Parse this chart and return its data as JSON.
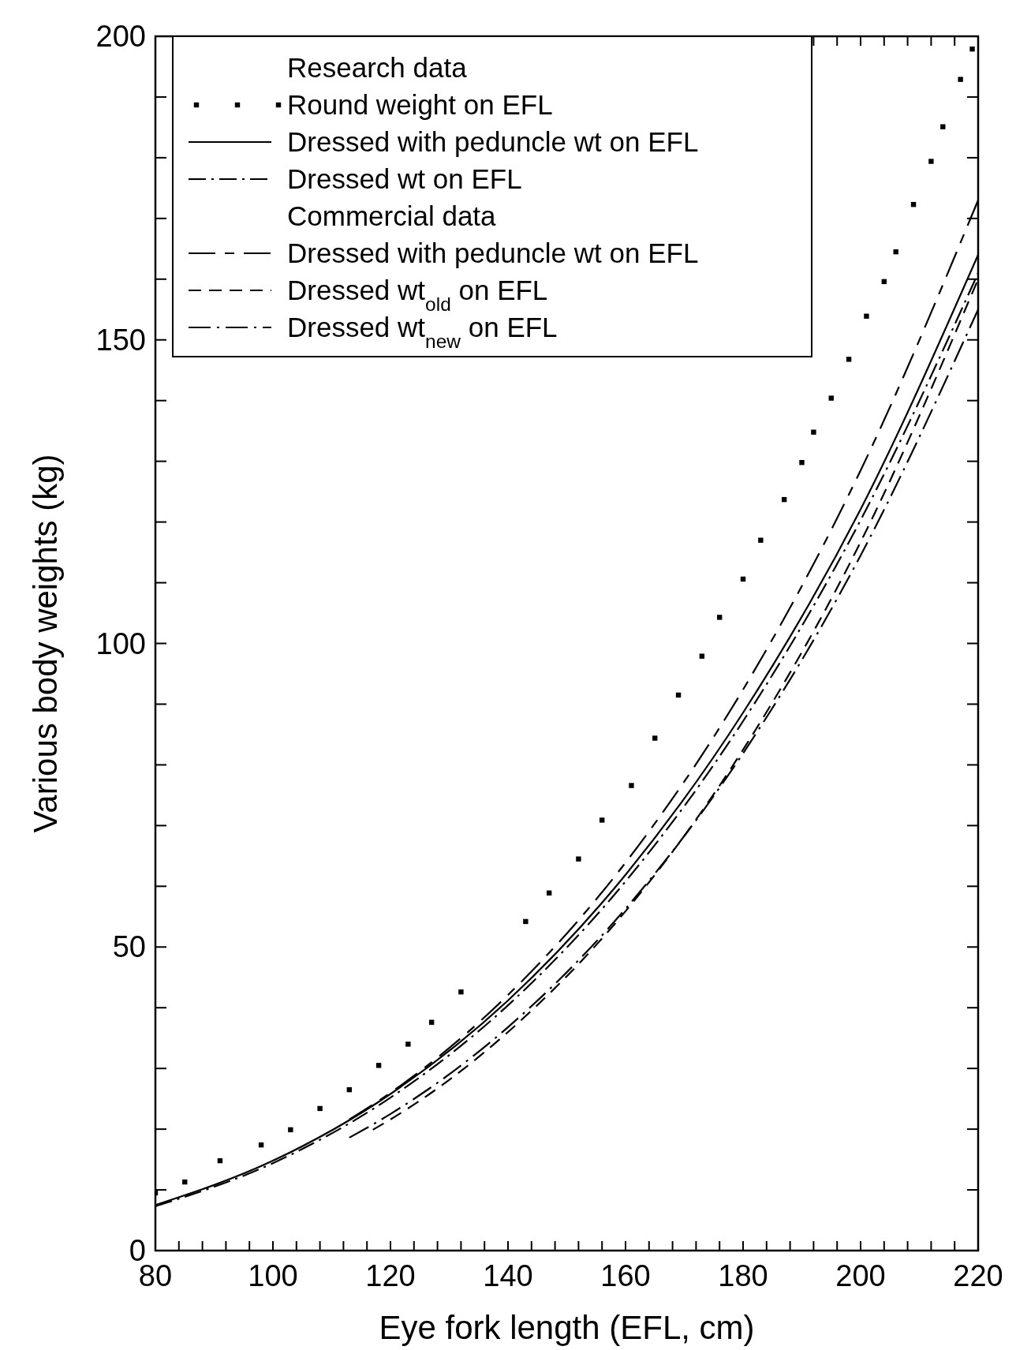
{
  "chart_data": {
    "type": "line",
    "xlabel": "Eye fork length (EFL, cm)",
    "ylabel": "Various body weights (kg)",
    "xlim": [
      80,
      220
    ],
    "ylim": [
      0,
      200
    ],
    "xticks": [
      80,
      {
        "value": 84,
        "label": null
      },
      {
        "value": 88,
        "label": null
      },
      {
        "value": 92,
        "label": null
      },
      {
        "value": 96,
        "label": null
      },
      100,
      {
        "value": 104,
        "label": null
      },
      {
        "value": 108,
        "label": null
      },
      {
        "value": 112,
        "label": null
      },
      {
        "value": 116,
        "label": null
      },
      120,
      {
        "value": 124,
        "label": null
      },
      {
        "value": 128,
        "label": null
      },
      {
        "value": 132,
        "label": null
      },
      {
        "value": 136,
        "label": null
      },
      140,
      {
        "value": 144,
        "label": null
      },
      {
        "value": 148,
        "label": null
      },
      {
        "value": 152,
        "label": null
      },
      {
        "value": 156,
        "label": null
      },
      160,
      {
        "value": 164,
        "label": null
      },
      {
        "value": 168,
        "label": null
      },
      {
        "value": 172,
        "label": null
      },
      {
        "value": 176,
        "label": null
      },
      180,
      {
        "value": 184,
        "label": null
      },
      {
        "value": 188,
        "label": null
      },
      {
        "value": 192,
        "label": null
      },
      {
        "value": 196,
        "label": null
      },
      200,
      {
        "value": 204,
        "label": null
      },
      {
        "value": 208,
        "label": null
      },
      {
        "value": 212,
        "label": null
      },
      {
        "value": 216,
        "label": null
      },
      220
    ],
    "yticks": [
      0,
      {
        "value": 10,
        "label": null
      },
      {
        "value": 20,
        "label": null
      },
      {
        "value": 30,
        "label": null
      },
      {
        "value": 40,
        "label": null
      },
      50,
      {
        "value": 60,
        "label": null
      },
      {
        "value": 70,
        "label": null
      },
      {
        "value": 80,
        "label": null
      },
      {
        "value": 90,
        "label": null
      },
      100,
      {
        "value": 110,
        "label": null
      },
      {
        "value": 120,
        "label": null
      },
      {
        "value": 130,
        "label": null
      },
      {
        "value": 140,
        "label": null
      },
      150,
      {
        "value": 160,
        "label": null
      },
      {
        "value": 170,
        "label": null
      },
      {
        "value": 180,
        "label": null
      },
      {
        "value": 190,
        "label": null
      },
      200
    ],
    "grid": false,
    "legend": "top left",
    "annotations": [
      "Research data",
      "Commercial data"
    ],
    "series": [
      {
        "name": "Round weight on EFL",
        "type": "scatter",
        "marker": "square",
        "color": "#000000",
        "x": [
          80,
          85,
          91,
          98,
          103,
          108,
          113,
          118,
          123,
          127,
          132,
          143,
          147,
          152,
          156,
          161,
          165,
          169,
          173,
          176,
          180,
          183,
          187,
          190,
          192,
          195,
          198,
          201,
          204,
          206,
          209,
          212,
          214,
          217,
          219
        ],
        "values": [
          9.5,
          11.3,
          14.8,
          17.4,
          19.9,
          23.4,
          26.5,
          30.5,
          34,
          37.6,
          42.6,
          54.2,
          58.9,
          64.5,
          70.9,
          76.6,
          84.4,
          91.5,
          97.9,
          104.3,
          110.6,
          117,
          123.7,
          129.8,
          134.8,
          140.4,
          146.8,
          153.9,
          159.6,
          164.5,
          172.3,
          179.4,
          185.1,
          192.9,
          197.9
        ]
      },
      {
        "name": "Dressed with peduncle wt on EFL",
        "line_style": "solid",
        "color": "#000000",
        "x": [
          80,
          100,
          120,
          140,
          160,
          180,
          200,
          220
        ],
        "values": [
          7.5,
          14.8,
          25.8,
          41.2,
          61.9,
          88.6,
          122.1,
          164
        ]
      },
      {
        "name": "Dressed wt on EFL",
        "line_style": "dashed",
        "color": "#000000",
        "x": [
          80,
          100,
          120,
          140,
          160,
          180,
          200,
          220
        ],
        "values": [
          7.3,
          14.4,
          25.2,
          40.4,
          60.8,
          87.2,
          120.3,
          161
        ]
      },
      {
        "name": "Dressed with peduncle wt on EFL",
        "line_style": "dashed",
        "color": "#000000",
        "x": [
          113,
          120,
          140,
          160,
          180,
          200,
          220
        ],
        "values": [
          21.6,
          26,
          42.1,
          63.9,
          92.4,
          128.5,
          173
        ]
      },
      {
        "name": "Dressed wt$_{old}$ on EFL",
        "line_style": "dashed",
        "color": "#000000",
        "x": [
          117,
          120,
          140,
          160,
          180,
          200,
          220
        ],
        "values": [
          19.9,
          21.6,
          36,
          55.9,
          82.5,
          116.7,
          160
        ]
      },
      {
        "name": "Dressed wt$_{new}$ on EFL",
        "line_style": "dashed",
        "color": "#000000",
        "x": [
          113,
          120,
          140,
          160,
          180,
          200,
          220
        ],
        "values": [
          18.6,
          22.5,
          36.8,
          56.3,
          81.9,
          114.5,
          155
        ]
      }
    ]
  }
}
